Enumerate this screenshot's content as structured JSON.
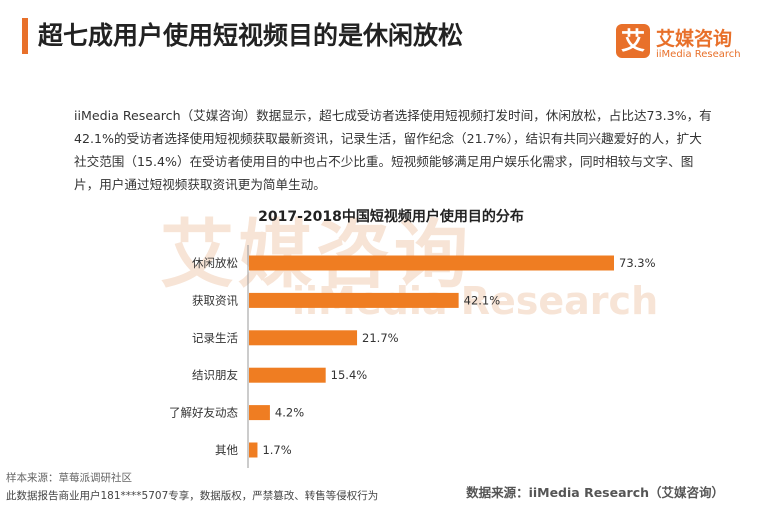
{
  "header": {
    "title": "超七成用户使用短视频目的是休闲放松"
  },
  "logo": {
    "mark": "艾",
    "name_cn": "艾媒咨询",
    "name_en": "iiMedia Research"
  },
  "intro": "iiMedia Research（艾媒咨询）数据显示，超七成受访者选择使用短视频打发时间，休闲放松，占比达73.3%，有42.1%的受访者选择使用短视频获取最新资讯，记录生活，留作纪念（21.7%），结识有共同兴趣爱好的人，扩大社交范围（15.4%）在受访者使用目的中也占不少比重。短视频能够满足用户娱乐化需求，同时相较与文字、图片，用户通过短视频获取资讯更为简单生动。",
  "watermark": {
    "cn": "艾媒咨询",
    "en": "iiMedia Research"
  },
  "chart_data": {
    "type": "bar",
    "orientation": "horizontal",
    "title": "2017-2018中国短视频用户使用目的分布",
    "categories": [
      "休闲放松",
      "获取资讯",
      "记录生活",
      "结识朋友",
      "了解好友动态",
      "其他"
    ],
    "values": [
      73.3,
      42.1,
      21.7,
      15.4,
      4.2,
      1.7
    ],
    "value_labels": [
      "73.3%",
      "42.1%",
      "21.7%",
      "15.4%",
      "4.2%",
      "1.7%"
    ],
    "unit": "%",
    "xlim": [
      0,
      73.3
    ],
    "grid": false,
    "bar_color": "#ef7d22"
  },
  "footer": {
    "sample": "样本来源：草莓派调研社区",
    "copyright": "此数据报告商业用户181****5707专享，数据版权，严禁篡改、转售等侵权行为",
    "source": "数据来源：iiMedia Research（艾媒咨询）"
  }
}
